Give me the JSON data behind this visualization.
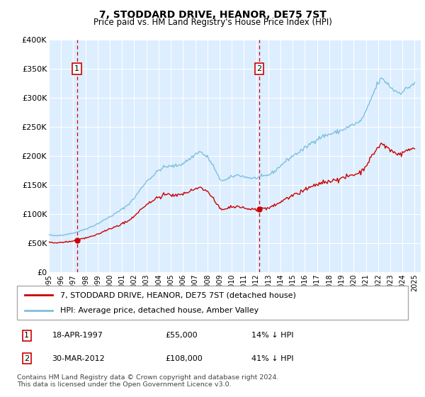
{
  "title": "7, STODDARD DRIVE, HEANOR, DE75 7ST",
  "subtitle": "Price paid vs. HM Land Registry's House Price Index (HPI)",
  "ylim": [
    0,
    400000
  ],
  "yticks": [
    0,
    50000,
    100000,
    150000,
    200000,
    250000,
    300000,
    350000,
    400000
  ],
  "ytick_labels": [
    "£0",
    "£50K",
    "£100K",
    "£150K",
    "£200K",
    "£250K",
    "£300K",
    "£350K",
    "£400K"
  ],
  "xlim_start": 1995.0,
  "xlim_end": 2025.5,
  "sale1_x": 1997.296,
  "sale1_y": 55000,
  "sale2_x": 2012.247,
  "sale2_y": 108000,
  "hpi_color": "#7fbfdf",
  "price_color": "#cc0000",
  "vline_color": "#cc0000",
  "bg_color": "#ddeeff",
  "grid_color": "#ffffff",
  "legend_line1": "7, STODDARD DRIVE, HEANOR, DE75 7ST (detached house)",
  "legend_line2": "HPI: Average price, detached house, Amber Valley",
  "table_row1_num": "1",
  "table_row1_date": "18-APR-1997",
  "table_row1_price": "£55,000",
  "table_row1_hpi": "14% ↓ HPI",
  "table_row2_num": "2",
  "table_row2_date": "30-MAR-2012",
  "table_row2_price": "£108,000",
  "table_row2_hpi": "41% ↓ HPI",
  "footnote": "Contains HM Land Registry data © Crown copyright and database right 2024.\nThis data is licensed under the Open Government Licence v3.0."
}
